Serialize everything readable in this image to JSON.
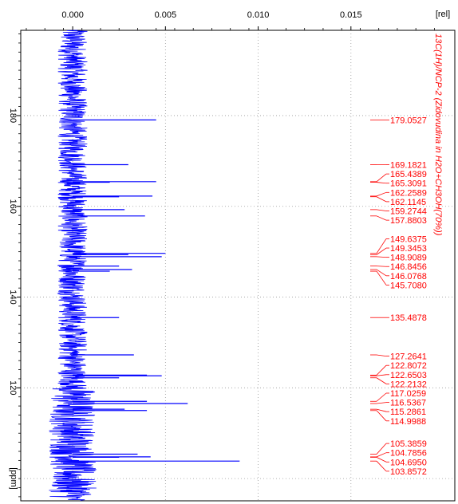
{
  "chart_data": {
    "type": "line",
    "title": "13C(1H)/NCP-2 (Zidovudina in H2O+CH3OH(70%))",
    "xlabel": "[rel]",
    "ylabel": "[ppm]",
    "x_ticks": [
      "0.000",
      "0.005",
      "0.010",
      "0.015"
    ],
    "x_tick_values": [
      0.0,
      0.005,
      0.01,
      0.015
    ],
    "xlim": [
      -0.0028,
      0.0206
    ],
    "y_ticks": [
      "180",
      "160",
      "140",
      "120"
    ],
    "y_tick_values": [
      180,
      160,
      140,
      120
    ],
    "ylim": [
      198.8,
      95.1
    ],
    "grid": true,
    "orientation": "vertical (ppm on vertical axis, intensity on horizontal axis)",
    "baseline_noise_amplitude": 0.0008,
    "series": [
      {
        "color": "#0000ff",
        "peaks": [
          {
            "ppm": 179.0527,
            "rel": 0.0045
          },
          {
            "ppm": 169.1821,
            "rel": 0.003
          },
          {
            "ppm": 165.4389,
            "rel": 0.0045
          },
          {
            "ppm": 165.3091,
            "rel": 0.002
          },
          {
            "ppm": 162.2589,
            "rel": 0.0043
          },
          {
            "ppm": 162.1145,
            "rel": 0.0025
          },
          {
            "ppm": 159.2744,
            "rel": 0.0028
          },
          {
            "ppm": 157.8803,
            "rel": 0.0039
          },
          {
            "ppm": 149.6375,
            "rel": 0.005
          },
          {
            "ppm": 149.3453,
            "rel": 0.003
          },
          {
            "ppm": 148.9089,
            "rel": 0.0048
          },
          {
            "ppm": 146.8456,
            "rel": 0.0025
          },
          {
            "ppm": 146.0768,
            "rel": 0.0032
          },
          {
            "ppm": 145.708,
            "rel": 0.002
          },
          {
            "ppm": 135.4878,
            "rel": 0.0025
          },
          {
            "ppm": 127.2641,
            "rel": 0.0033
          },
          {
            "ppm": 122.8072,
            "rel": 0.004
          },
          {
            "ppm": 122.6503,
            "rel": 0.0048
          },
          {
            "ppm": 122.2132,
            "rel": 0.0025
          },
          {
            "ppm": 117.0259,
            "rel": 0.004
          },
          {
            "ppm": 116.5367,
            "rel": 0.0062
          },
          {
            "ppm": 115.2861,
            "rel": 0.0028
          },
          {
            "ppm": 114.9988,
            "rel": 0.004
          },
          {
            "ppm": 105.3859,
            "rel": 0.0035
          },
          {
            "ppm": 104.7856,
            "rel": 0.0042
          },
          {
            "ppm": 104.695,
            "rel": 0.0025
          },
          {
            "ppm": 103.8572,
            "rel": 0.009
          }
        ]
      }
    ],
    "peak_labels": [
      "179.0527",
      "169.1821",
      "165.4389",
      "165.3091",
      "162.2589",
      "162.1145",
      "159.2744",
      "157.8803",
      "149.6375",
      "149.3453",
      "148.9089",
      "146.8456",
      "146.0768",
      "145.7080",
      "135.4878",
      "127.2641",
      "122.8072",
      "122.6503",
      "122.2132",
      "117.0259",
      "116.5367",
      "115.2861",
      "114.9988",
      "105.3859",
      "104.7856",
      "104.6950",
      "103.8572"
    ],
    "label_groups": [
      [
        0
      ],
      [
        1,
        2,
        3,
        4,
        5,
        6,
        7
      ],
      [
        8,
        9,
        10,
        11,
        12,
        13
      ],
      [
        14
      ],
      [
        15,
        16,
        17,
        18,
        19,
        20,
        21,
        22
      ],
      [
        23,
        24,
        25,
        26
      ]
    ],
    "colors": {
      "spectrum": "#0000ff",
      "labels": "#ff0000",
      "axis": "#000000",
      "grid": "#999999"
    }
  }
}
